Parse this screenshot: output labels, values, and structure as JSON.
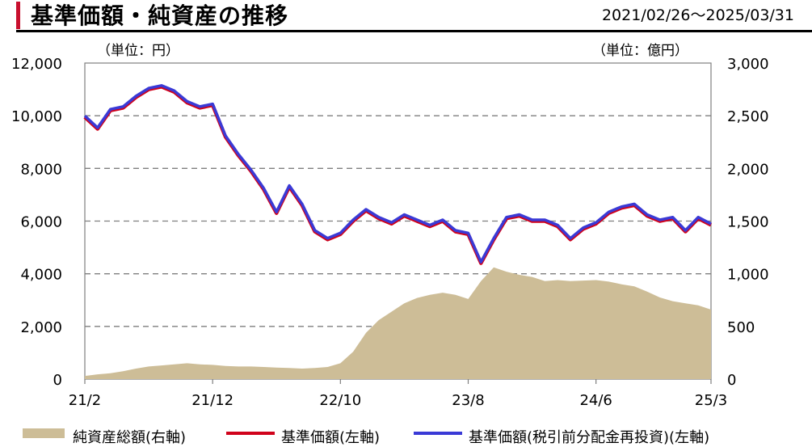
{
  "header": {
    "title": "基準価額・純資産の推移",
    "period": "2021/02/26～2025/03/31"
  },
  "units": {
    "left": "（単位：円）",
    "right": "（単位：億円）"
  },
  "legend": [
    {
      "label": "純資産総額(右軸)",
      "color": "#cdbd97",
      "kind": "area"
    },
    {
      "label": "基準価額(左軸)",
      "color": "#d0021b",
      "kind": "line"
    },
    {
      "label": "基準価額(税引前分配金再投資)(左軸)",
      "color": "#3a3ad6",
      "kind": "line"
    }
  ],
  "chart_data": {
    "type": "line",
    "x": [
      "21/2",
      "21/3",
      "21/4",
      "21/5",
      "21/6",
      "21/7",
      "21/8",
      "21/9",
      "21/10",
      "21/11",
      "21/12",
      "22/1",
      "22/2",
      "22/3",
      "22/4",
      "22/5",
      "22/6",
      "22/7",
      "22/8",
      "22/9",
      "22/10",
      "22/11",
      "22/12",
      "23/1",
      "23/2",
      "23/3",
      "23/4",
      "23/5",
      "23/6",
      "23/7",
      "23/8",
      "23/9",
      "23/10",
      "23/11",
      "23/12",
      "24/1",
      "24/2",
      "24/3",
      "24/4",
      "24/5",
      "24/6",
      "24/7",
      "24/8",
      "24/9",
      "24/10",
      "24/11",
      "24/12",
      "25/1",
      "25/2",
      "25/3"
    ],
    "x_tick_labels": [
      "21/2",
      "21/12",
      "22/10",
      "23/8",
      "24/6",
      "25/3"
    ],
    "y_left": {
      "label": "",
      "ylim": [
        0,
        12000
      ],
      "ticks": [
        "0",
        "2,000",
        "4,000",
        "6,000",
        "8,000",
        "10,000",
        "12,000"
      ]
    },
    "y_right": {
      "label": "",
      "ylim": [
        0,
        3000
      ],
      "ticks": [
        "0",
        "500",
        "1,000",
        "1,500",
        "2,000",
        "2,500",
        "3,000"
      ]
    },
    "grid": "horizontal dashed",
    "legend_position": "bottom",
    "series": [
      {
        "name": "純資産総額(右軸)",
        "axis": "right",
        "type": "area",
        "color": "#cdbd97",
        "values": [
          30,
          45,
          55,
          75,
          100,
          120,
          130,
          140,
          150,
          140,
          135,
          125,
          120,
          120,
          115,
          110,
          105,
          100,
          105,
          115,
          150,
          260,
          440,
          560,
          640,
          720,
          770,
          800,
          820,
          800,
          760,
          930,
          1060,
          1020,
          990,
          970,
          930,
          940,
          930,
          935,
          940,
          925,
          900,
          880,
          830,
          775,
          740,
          720,
          700,
          660
        ]
      },
      {
        "name": "基準価額(左軸)",
        "axis": "left",
        "type": "line",
        "color": "#d0021b",
        "values": [
          9950,
          9500,
          10200,
          10300,
          10700,
          11000,
          11100,
          10900,
          10500,
          10300,
          10400,
          9200,
          8500,
          7900,
          7200,
          6300,
          7300,
          6600,
          5600,
          5300,
          5500,
          6000,
          6400,
          6100,
          5900,
          6200,
          6000,
          5800,
          6000,
          5600,
          5500,
          4400,
          5300,
          6100,
          6200,
          6000,
          6000,
          5800,
          5300,
          5700,
          5900,
          6300,
          6500,
          6600,
          6200,
          6000,
          6100,
          5600,
          6100,
          5850
        ]
      },
      {
        "name": "基準価額(税引前分配金再投資)(左軸)",
        "axis": "left",
        "type": "line",
        "color": "#3a3ad6",
        "values": [
          9950,
          9500,
          10200,
          10300,
          10700,
          11000,
          11100,
          10900,
          10500,
          10300,
          10400,
          9200,
          8500,
          7900,
          7200,
          6300,
          7300,
          6600,
          5600,
          5300,
          5500,
          6000,
          6400,
          6100,
          5900,
          6200,
          6000,
          5800,
          6000,
          5600,
          5500,
          4400,
          5300,
          6100,
          6200,
          6000,
          6000,
          5800,
          5300,
          5700,
          5900,
          6300,
          6500,
          6600,
          6200,
          6000,
          6100,
          5600,
          6100,
          5850
        ]
      }
    ]
  }
}
